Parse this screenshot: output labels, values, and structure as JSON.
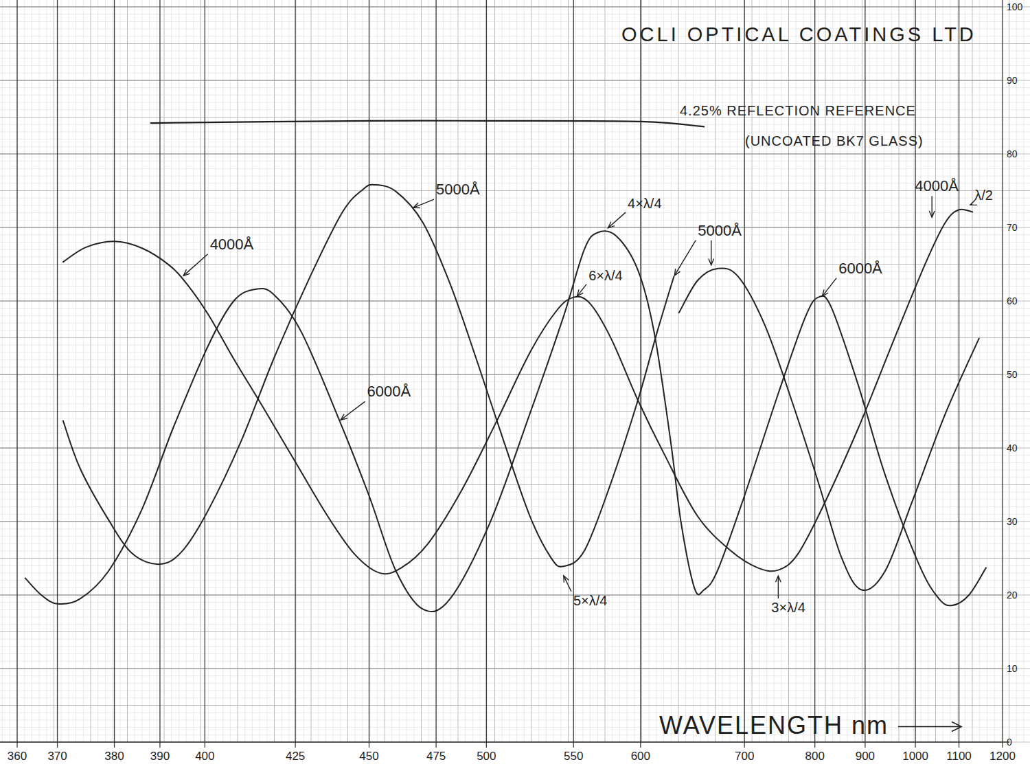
{
  "chart_data": {
    "type": "line",
    "title": "OCLI OPTICAL COATINGS LTD",
    "x_label": "WAVELENGTH nm",
    "xlim": [
      360,
      1200
    ],
    "xticks": [
      360,
      370,
      380,
      390,
      400,
      425,
      450,
      475,
      500,
      550,
      600,
      700,
      800,
      900,
      1000,
      1100,
      1200
    ],
    "ylim": [
      0,
      100
    ],
    "yticks": [
      0,
      10,
      20,
      30,
      40,
      50,
      60,
      70,
      80,
      90,
      100
    ],
    "grid": true,
    "series": [
      {
        "name": "4000Å",
        "color": "#222222",
        "x": [
          371,
          375,
          380,
          386,
          392,
          396,
          401,
          408,
          416,
          425,
          436,
          445,
          454,
          462,
          472,
          488,
          506,
          525,
          540,
          550,
          562,
          578,
          598,
          623,
          655,
          687,
          719,
          748,
          776,
          820,
          887,
          953,
          1023,
          1069,
          1100,
          1131
        ],
        "values": [
          65.3,
          67.3,
          68.1,
          67.2,
          64.9,
          62.3,
          58.1,
          52.1,
          45.6,
          38.1,
          30.7,
          25.6,
          23.0,
          23.7,
          27.0,
          34.4,
          43.7,
          53.0,
          58.6,
          60.5,
          59.7,
          54.9,
          46.5,
          39.1,
          30.7,
          26.0,
          23.7,
          23.4,
          25.6,
          32.6,
          42.8,
          54.0,
          65.1,
          70.7,
          72.4,
          72.1
        ],
        "label_at": [
          [
            [
              395,
              63.3
            ]
          ],
          [
            [
              1038,
              71.2
            ]
          ]
        ]
      },
      {
        "name": "5000Å",
        "color": "#222222",
        "x": [
          371,
          374,
          379,
          384,
          390,
          395,
          401,
          410,
          419,
          430,
          441,
          448,
          452,
          460,
          470,
          482,
          495,
          510,
          525,
          537,
          544,
          558,
          578,
          598,
          616,
          632,
          null,
          637,
          655,
          674,
          694,
          729,
          767,
          807,
          853,
          893,
          940,
          993,
          1069,
          1146
        ],
        "values": [
          43.7,
          37.2,
          30.2,
          25.6,
          24.2,
          26.0,
          31.6,
          40.9,
          52.1,
          63.3,
          72.1,
          75.2,
          75.8,
          74.9,
          70.7,
          62.3,
          52.1,
          40.9,
          30.7,
          25.1,
          23.9,
          26.0,
          35.3,
          46.5,
          55.8,
          63.3,
          null,
          58.4,
          62.8,
          64.4,
          63.3,
          56.7,
          46.5,
          35.3,
          25.1,
          20.7,
          23.3,
          32.6,
          44.7,
          54.9
        ],
        "label_at": [
          [
            [
              466,
              72.6
            ]
          ],
          [
            [
              632,
              63.3
            ],
            [
              668,
              64.7
            ]
          ]
        ]
      },
      {
        "name": "6000Å",
        "color": "#222222",
        "x": [
          362,
          366,
          370,
          374,
          379,
          386,
          393,
          401,
          408,
          414,
          419,
          427,
          440,
          450,
          460,
          470,
          482,
          502,
          525,
          544,
          558,
          568,
          582,
          598,
          613,
          629,
          639,
          652,
          661,
          674,
          700,
          748,
          786,
          807,
          833,
          887,
          940,
          1008,
          1054,
          1085,
          1123,
          1162
        ],
        "values": [
          22.3,
          20.0,
          18.8,
          19.5,
          23.3,
          31.6,
          42.8,
          54.0,
          60.0,
          61.6,
          60.9,
          55.8,
          43.7,
          33.5,
          23.3,
          18.1,
          19.5,
          29.8,
          44.7,
          57.7,
          67.0,
          69.3,
          68.8,
          64.2,
          55.8,
          40.9,
          29.8,
          20.9,
          20.7,
          23.3,
          33.5,
          47.4,
          57.7,
          60.5,
          59.1,
          48.4,
          36.3,
          24.2,
          19.5,
          18.6,
          20.0,
          23.7
        ],
        "label_at": [
          [
            [
              440,
              43.7
            ]
          ],
          [
            [
              813,
              60.5
            ]
          ]
        ]
      }
    ],
    "reference": {
      "label": [
        "4.25% REFLECTION REFERENCE",
        "(UNCOATED BK7 GLASS)"
      ],
      "x": [
        388,
        450,
        500,
        600,
        661
      ],
      "values": [
        84.2,
        84.5,
        84.5,
        84.4,
        83.7
      ]
    },
    "annotations": [
      {
        "text": "4×λ/4",
        "points": [
          [
            575,
            69.8
          ]
        ]
      },
      {
        "text": "6×λ/4",
        "points": [
          [
            552,
            60.5
          ]
        ]
      },
      {
        "text": "5×λ/4",
        "points": [
          [
            544,
            22.8
          ]
        ]
      },
      {
        "text": "3×λ/4",
        "points": [
          [
            748,
            22.8
          ]
        ]
      },
      {
        "text": "λ/2",
        "points": [
          [
            1123,
            73.0
          ]
        ]
      }
    ]
  }
}
